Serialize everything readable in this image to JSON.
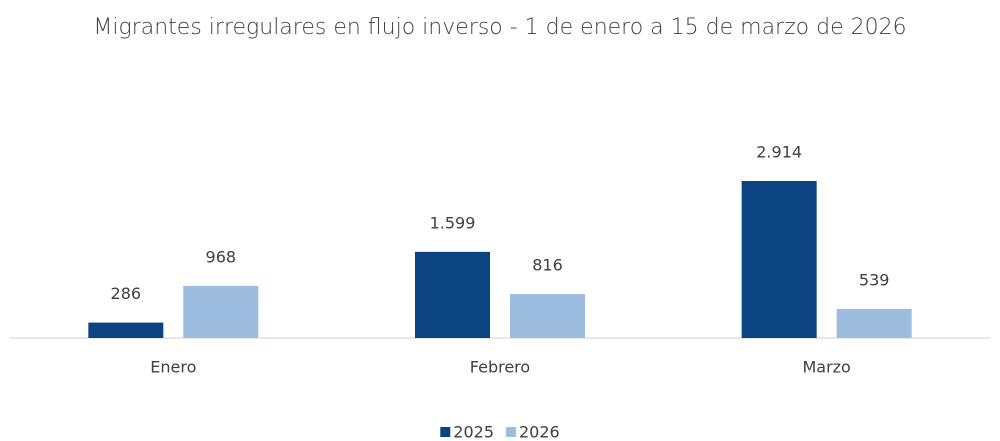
{
  "chart_data": {
    "type": "bar",
    "title": "Migrantes irregulares en flujo inverso - 1 de enero a 15 de marzo de 2026",
    "categories": [
      "Enero",
      "Febrero",
      "Marzo"
    ],
    "series": [
      {
        "name": "2025",
        "color": "#0b4480",
        "values": [
          286,
          1599,
          2914
        ],
        "value_labels": [
          "286",
          "1.599",
          "2.914"
        ]
      },
      {
        "name": "2026",
        "color": "#9dbde0",
        "values": [
          968,
          816,
          539
        ],
        "value_labels": [
          "968",
          "816",
          "539"
        ]
      }
    ],
    "legend": "bottom"
  }
}
